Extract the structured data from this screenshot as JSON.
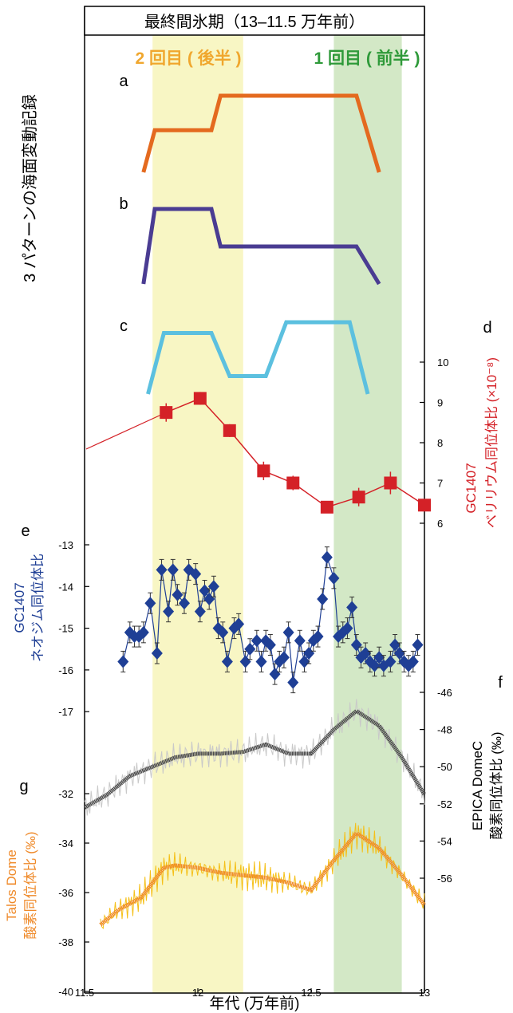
{
  "figure": {
    "title": "最終間氷期（13–11.5 万年前）",
    "phase_second": "2 回目 ( 後半 )",
    "phase_first": "1 回目 ( 前半 )",
    "side_label": "3 パターンの海面変動記録",
    "xlabel": "年代 (万年前)"
  },
  "colors": {
    "phase_second_band": "#f8f6c4",
    "phase_first_band": "#d3e8c6",
    "phase_second_text": "#f0a72e",
    "phase_first_text": "#2f9a3a",
    "pattern_a": "#e46a1f",
    "pattern_b": "#4a3c92",
    "pattern_c": "#5cc0df",
    "beryllium": "#d42127",
    "neodymium": "#1f3f95",
    "epica": "#4a4a4a",
    "epica_raw": "#c9c9c9",
    "talos": "#ef8a2a",
    "talos_raw": "#f5c018"
  },
  "chart_data": [
    {
      "type": "line",
      "panel": "a",
      "x": [
        11.76,
        11.81,
        12.06,
        12.1,
        12.7,
        12.8
      ],
      "y": [
        0.0,
        0.55,
        0.55,
        1.0,
        1.0,
        0.0
      ]
    },
    {
      "type": "line",
      "panel": "b",
      "x": [
        11.76,
        11.81,
        12.06,
        12.1,
        12.7,
        12.8
      ],
      "y": [
        0.0,
        1.0,
        1.0,
        0.5,
        0.5,
        0.0
      ]
    },
    {
      "type": "line",
      "panel": "c",
      "x": [
        11.78,
        11.85,
        12.06,
        12.14,
        12.3,
        12.39,
        12.67,
        12.75
      ],
      "y": [
        0.0,
        0.85,
        0.85,
        0.25,
        0.25,
        1.0,
        1.0,
        0.0
      ]
    },
    {
      "type": "line",
      "panel": "d",
      "ylabel_name": "GC1407",
      "ylabel": "ベリリウム同位体比 (×10⁻⁸)",
      "y_ticks": [
        6,
        7,
        8,
        9,
        10
      ],
      "x": [
        11.86,
        12.01,
        12.14,
        12.29,
        12.42,
        12.57,
        12.71,
        12.85,
        13.0
      ],
      "y": [
        8.75,
        9.1,
        8.3,
        7.3,
        7.0,
        6.4,
        6.65,
        7.0,
        6.45
      ],
      "error": [
        0.15,
        0.08,
        0.08,
        0.15,
        0.1,
        0.05,
        0.15,
        0.2,
        0.05
      ]
    },
    {
      "type": "line",
      "panel": "e",
      "ylabel_name": "GC1407",
      "ylabel": "ネオジム同位体比",
      "y_ticks": [
        -13,
        -14,
        -15,
        -16,
        -17
      ],
      "x": [
        11.67,
        11.7,
        11.72,
        11.74,
        11.76,
        11.79,
        11.82,
        11.84,
        11.87,
        11.89,
        11.91,
        11.94,
        11.96,
        11.99,
        12.01,
        12.03,
        12.05,
        12.07,
        12.09,
        12.11,
        12.13,
        12.16,
        12.18,
        12.21,
        12.23,
        12.26,
        12.28,
        12.3,
        12.32,
        12.34,
        12.36,
        12.38,
        12.4,
        12.42,
        12.45,
        12.47,
        12.49,
        12.51,
        12.53,
        12.55,
        12.57,
        12.6,
        12.62,
        12.64,
        12.66,
        12.68,
        12.7,
        12.72,
        12.74,
        12.76,
        12.78,
        12.8,
        12.82,
        12.85,
        12.87,
        12.89,
        12.91,
        12.93,
        12.95,
        12.97
      ],
      "y": [
        -15.8,
        -15.1,
        -15.2,
        -15.2,
        -15.1,
        -14.4,
        -15.6,
        -13.6,
        -14.6,
        -13.6,
        -14.2,
        -14.4,
        -13.6,
        -13.7,
        -14.6,
        -14.1,
        -14.3,
        -14.0,
        -15.0,
        -15.1,
        -15.8,
        -15.0,
        -14.9,
        -15.8,
        -15.5,
        -15.3,
        -15.8,
        -15.3,
        -15.4,
        -16.1,
        -15.8,
        -15.7,
        -15.1,
        -16.3,
        -15.3,
        -15.8,
        -15.6,
        -15.3,
        -15.2,
        -14.3,
        -13.3,
        -13.8,
        -15.2,
        -15.1,
        -15.0,
        -14.5,
        -15.4,
        -15.7,
        -15.6,
        -15.8,
        -15.9,
        -15.7,
        -15.9,
        -15.8,
        -15.4,
        -15.6,
        -15.8,
        -15.9,
        -15.8,
        -15.4
      ]
    },
    {
      "type": "line",
      "panel": "f",
      "ylabel_name": "EPICA DomeC",
      "ylabel": "酸素同位体比 (‰)",
      "y_ticks": [
        -46,
        -48,
        -50,
        -52,
        -54,
        -56
      ],
      "x": [
        11.5,
        11.6,
        11.7,
        11.8,
        11.9,
        12.0,
        12.1,
        12.2,
        12.3,
        12.4,
        12.5,
        12.6,
        12.7,
        12.8,
        12.9,
        13.0
      ],
      "y": [
        -52.2,
        -51.5,
        -50.5,
        -50.0,
        -49.5,
        -49.3,
        -49.3,
        -49.2,
        -48.8,
        -49.3,
        -49.3,
        -48.0,
        -47.0,
        -47.8,
        -49.5,
        -51.5
      ]
    },
    {
      "type": "line",
      "panel": "g",
      "ylabel_name": "Talos Dome",
      "ylabel": "酸素同位体比 (‰)",
      "y_ticks": [
        -32,
        -34,
        -36,
        -38,
        -40
      ],
      "x": [
        11.57,
        11.65,
        11.75,
        11.8,
        11.85,
        11.9,
        12.0,
        12.1,
        12.2,
        12.3,
        12.4,
        12.5,
        12.6,
        12.7,
        12.8,
        12.9,
        13.0
      ],
      "y": [
        -37.3,
        -36.7,
        -36.2,
        -35.6,
        -35.0,
        -34.9,
        -35.0,
        -35.2,
        -35.3,
        -35.4,
        -35.6,
        -35.9,
        -34.7,
        -33.6,
        -34.2,
        -35.3,
        -36.5
      ]
    }
  ],
  "x_axis": {
    "xlim": [
      11.5,
      13
    ],
    "ticks": [
      "11.5",
      "12",
      "12.5",
      "13"
    ],
    "bands": [
      [
        11.8,
        12.2
      ],
      [
        12.6,
        12.9
      ]
    ]
  }
}
